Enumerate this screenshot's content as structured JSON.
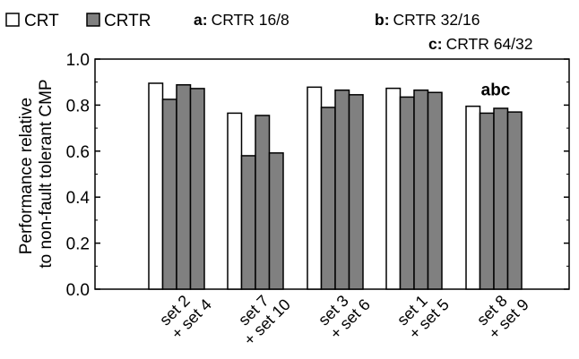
{
  "chart_data": {
    "type": "bar",
    "ylabel": [
      "Performance relative",
      "to non-fault tolerant CMP"
    ],
    "ylim": [
      0,
      1.0
    ],
    "yticks": [
      "0.0",
      "0.2",
      "0.4",
      "0.6",
      "0.8",
      "1.0"
    ],
    "categories": [
      [
        "set 2",
        "+ set 4"
      ],
      [
        "set 7",
        "+ set 10"
      ],
      [
        "set 3",
        "+ set 6"
      ],
      [
        "set 1",
        "+ set 5"
      ],
      [
        "set 8",
        "+ set 9"
      ]
    ],
    "series": [
      {
        "name": "CRT",
        "color": "#ffffff",
        "values": [
          0.895,
          0.765,
          0.878,
          0.873,
          0.795
        ]
      },
      {
        "name": "CRTR 16/8",
        "color": "#808080",
        "values": [
          0.825,
          0.58,
          0.79,
          0.835,
          0.765
        ]
      },
      {
        "name": "CRTR 32/16",
        "color": "#808080",
        "values": [
          0.888,
          0.755,
          0.865,
          0.865,
          0.786
        ]
      },
      {
        "name": "CRTR 64/32",
        "color": "#808080",
        "values": [
          0.872,
          0.592,
          0.845,
          0.855,
          0.77
        ]
      }
    ],
    "legend": {
      "entries": [
        {
          "label": "CRT",
          "color": "#ffffff"
        },
        {
          "label": "CRTR",
          "color": "#808080"
        }
      ],
      "notes": [
        {
          "key": "a:",
          "text": "CRTR 16/8"
        },
        {
          "key": "b:",
          "text": "CRTR 32/16"
        },
        {
          "key": "c:",
          "text": "CRTR 64/32"
        }
      ]
    },
    "annotation": {
      "text": "abc",
      "category_index": 4
    },
    "grid": false
  }
}
